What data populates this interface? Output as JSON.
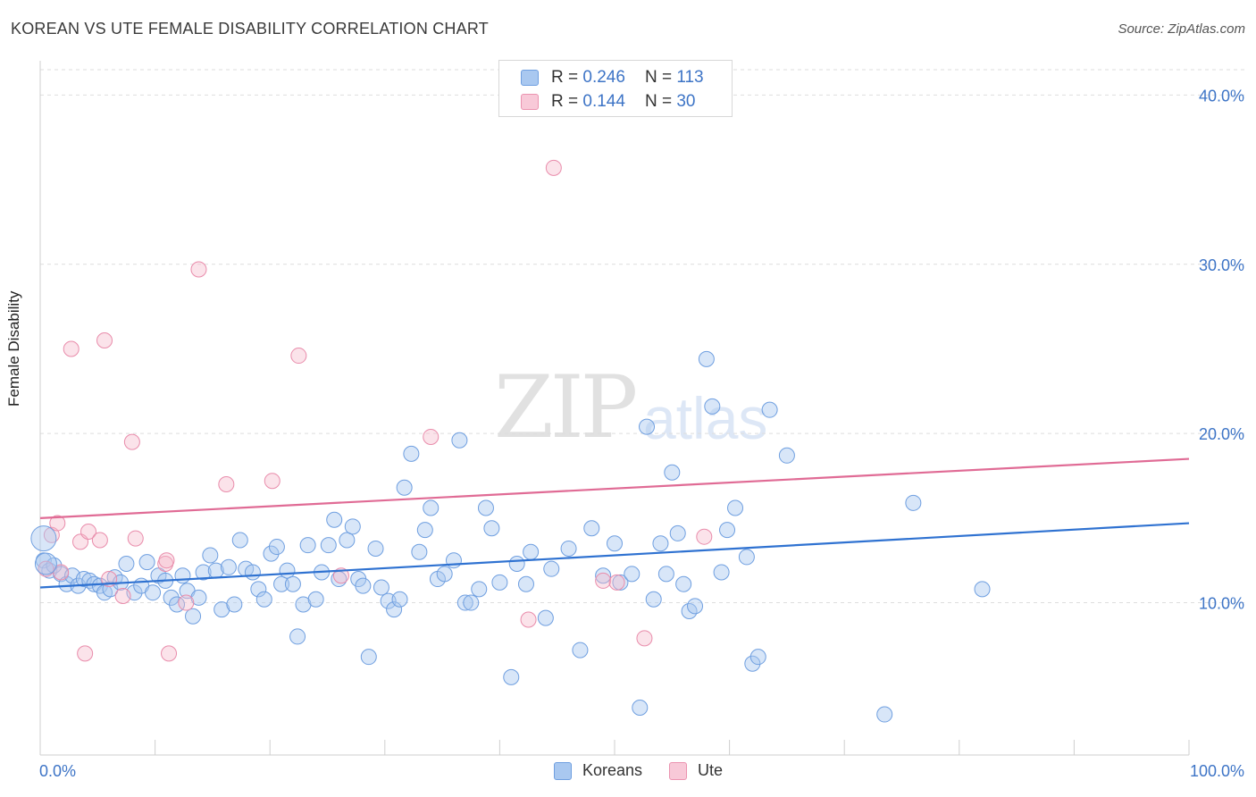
{
  "title": "KOREAN VS UTE FEMALE DISABILITY CORRELATION CHART",
  "source": "Source: ZipAtlas.com",
  "watermark": {
    "zip": "ZIP",
    "atlas": "atlas"
  },
  "colors": {
    "blue": "#4a86d4",
    "blue_fill": "#a9c8f0",
    "pink": "#e07098",
    "pink_fill": "#f5b8cb",
    "axis_text": "#3d74c6"
  },
  "legend_top": [
    {
      "r_label": "R =",
      "r_value": "0.246",
      "n_label": "N =",
      "n_value": "113"
    },
    {
      "r_label": "R =",
      "r_value": "0.144",
      "n_label": "N =",
      "n_value": "30"
    }
  ],
  "chart_data": {
    "type": "scatter",
    "title": "KOREAN VS UTE FEMALE DISABILITY CORRELATION CHART",
    "xlabel": "",
    "ylabel": "Female Disability",
    "xlim": [
      0,
      100
    ],
    "ylim": [
      1,
      41.5
    ],
    "x_tick_labels": [
      "0.0%",
      "100.0%"
    ],
    "y_ticks": [
      10,
      20,
      30,
      40
    ],
    "y_tick_labels": [
      "10.0%",
      "20.0%",
      "30.0%",
      "40.0%"
    ],
    "grid": "horizontal dashed",
    "legend_position": "bottom-center",
    "series": [
      {
        "name": "Koreans",
        "color": "#4a86d4",
        "trend": {
          "x": [
            0,
            100
          ],
          "y": [
            10.9,
            14.7
          ]
        },
        "x": [
          0.3,
          0.8,
          1.2,
          1.8,
          2.3,
          2.8,
          3.3,
          3.8,
          4.3,
          4.7,
          5.2,
          5.6,
          6.1,
          6.5,
          7.0,
          7.5,
          8.2,
          8.8,
          9.3,
          9.8,
          10.3,
          10.9,
          11.4,
          11.9,
          12.4,
          12.8,
          13.3,
          13.8,
          14.2,
          14.8,
          15.3,
          15.8,
          16.4,
          16.9,
          17.4,
          17.9,
          18.5,
          19.0,
          19.5,
          20.1,
          20.6,
          21.0,
          21.5,
          22.0,
          22.4,
          22.9,
          23.3,
          24.0,
          24.5,
          25.1,
          25.6,
          26.0,
          26.7,
          27.2,
          27.7,
          28.1,
          28.6,
          29.2,
          29.7,
          30.3,
          30.8,
          31.3,
          31.7,
          32.3,
          33.0,
          33.5,
          34.0,
          34.6,
          35.2,
          36.0,
          36.5,
          37.0,
          37.5,
          38.2,
          38.8,
          39.3,
          40.0,
          41.0,
          41.5,
          42.3,
          42.7,
          44.0,
          44.5,
          46.0,
          47.0,
          48.0,
          49.0,
          50.0,
          50.5,
          51.5,
          52.2,
          52.8,
          53.4,
          54.0,
          54.5,
          55.0,
          55.5,
          56.0,
          56.5,
          57.0,
          58.0,
          58.5,
          59.3,
          59.8,
          60.5,
          61.5,
          62.0,
          62.5,
          63.5,
          65.0,
          73.5,
          76.0,
          82.0
        ],
        "y": [
          12.5,
          11.9,
          12.2,
          11.7,
          11.1,
          11.6,
          11.0,
          11.4,
          11.3,
          11.1,
          11.0,
          10.6,
          10.8,
          11.5,
          11.2,
          12.3,
          10.6,
          11.0,
          12.4,
          10.6,
          11.6,
          11.3,
          10.3,
          9.9,
          11.6,
          10.7,
          9.2,
          10.3,
          11.8,
          12.8,
          11.9,
          9.6,
          12.1,
          9.9,
          13.7,
          12.0,
          11.8,
          10.8,
          10.2,
          12.9,
          13.3,
          11.1,
          11.9,
          11.1,
          8.0,
          9.9,
          13.4,
          10.2,
          11.8,
          13.4,
          14.9,
          11.4,
          13.7,
          14.5,
          11.4,
          11.0,
          6.8,
          13.2,
          10.9,
          10.1,
          9.6,
          10.2,
          16.8,
          18.8,
          13.0,
          14.3,
          15.6,
          11.4,
          11.7,
          12.5,
          19.6,
          10.0,
          10.0,
          10.8,
          15.6,
          14.4,
          11.2,
          5.6,
          12.3,
          11.1,
          13.0,
          9.1,
          12.0,
          13.2,
          7.2,
          14.4,
          11.6,
          13.5,
          11.2,
          11.7,
          3.8,
          20.4,
          10.2,
          13.5,
          11.7,
          17.7,
          14.1,
          11.1,
          9.5,
          9.8,
          24.4,
          21.6,
          11.8,
          14.3,
          15.6,
          12.7,
          6.4,
          6.8,
          21.4,
          18.7,
          3.4,
          15.9,
          10.8
        ]
      },
      {
        "name": "Ute",
        "color": "#e07098",
        "trend": {
          "x": [
            0,
            100
          ],
          "y": [
            15.0,
            18.5
          ]
        },
        "x": [
          0.5,
          1.0,
          1.5,
          1.8,
          2.7,
          3.5,
          3.9,
          4.2,
          5.2,
          5.6,
          6.0,
          7.2,
          8.0,
          8.3,
          10.9,
          11.0,
          11.2,
          12.7,
          13.8,
          16.2,
          20.2,
          22.5,
          26.2,
          34.0,
          42.5,
          44.7,
          49.0,
          50.2,
          52.6,
          57.8
        ],
        "y": [
          12.0,
          14.0,
          14.7,
          11.8,
          25.0,
          13.6,
          7.0,
          14.2,
          13.7,
          25.5,
          11.4,
          10.4,
          19.5,
          13.8,
          12.3,
          12.5,
          7.0,
          10.0,
          29.7,
          17.0,
          17.2,
          24.6,
          11.6,
          19.8,
          9.0,
          35.7,
          11.3,
          11.2,
          7.9,
          13.9
        ]
      }
    ]
  },
  "legend_bottom": [
    {
      "label": "Koreans"
    },
    {
      "label": "Ute"
    }
  ]
}
